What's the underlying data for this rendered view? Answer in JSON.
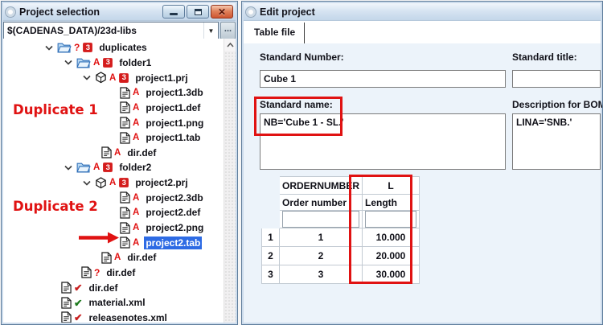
{
  "colors": {
    "frame-bg": "#cddcec",
    "frame-border": "#5f7d9c",
    "accent-red": "#e01212",
    "sel-blue": "#2e6be4",
    "badge-red": "#d41c1c",
    "check-red": "#c81e1e",
    "check-green": "#1e7a1e"
  },
  "left_window": {
    "title": "Project selection",
    "path_value": "$(CADENAS_DATA)/23d-libs",
    "browse_label": "...",
    "tree": [
      {
        "label": "duplicates",
        "pad": 52,
        "chevron": true,
        "icon": "folder",
        "marks": [
          "question"
        ],
        "badge": "3"
      },
      {
        "label": "folder1",
        "pad": 76,
        "chevron": true,
        "icon": "folder",
        "marks": [
          "letterA"
        ],
        "badge": "3"
      },
      {
        "label": "project1.prj",
        "pad": 99,
        "chevron": true,
        "icon": "cube",
        "marks": [
          "letterA"
        ],
        "badge": "3"
      },
      {
        "label": "project1.3db",
        "pad": 145,
        "icon": "doc",
        "marks": [
          "letterA"
        ]
      },
      {
        "label": "project1.def",
        "pad": 145,
        "icon": "doc",
        "marks": [
          "letterA"
        ]
      },
      {
        "label": "project1.png",
        "pad": 145,
        "icon": "doc",
        "marks": [
          "letterA"
        ]
      },
      {
        "label": "project1.tab",
        "pad": 145,
        "icon": "doc",
        "marks": [
          "letterA"
        ]
      },
      {
        "label": "dir.def",
        "pad": 122,
        "icon": "doc",
        "marks": [
          "letterA"
        ]
      },
      {
        "label": "folder2",
        "pad": 76,
        "chevron": true,
        "icon": "folder",
        "marks": [
          "letterA"
        ],
        "badge": "3"
      },
      {
        "label": "project2.prj",
        "pad": 99,
        "chevron": true,
        "icon": "cube",
        "marks": [
          "letterA"
        ],
        "badge": "3"
      },
      {
        "label": "project2.3db",
        "pad": 145,
        "icon": "doc",
        "marks": [
          "letterA"
        ]
      },
      {
        "label": "project2.def",
        "pad": 145,
        "icon": "doc",
        "marks": [
          "letterA"
        ]
      },
      {
        "label": "project2.png",
        "pad": 145,
        "icon": "doc",
        "marks": [
          "letterA"
        ]
      },
      {
        "label": "project2.tab",
        "pad": 145,
        "icon": "doc",
        "marks": [
          "letterA"
        ],
        "selected": true
      },
      {
        "label": "dir.def",
        "pad": 122,
        "icon": "doc",
        "marks": [
          "letterA"
        ]
      },
      {
        "label": "dir.def",
        "pad": 97,
        "icon": "doc",
        "marks": [
          "question"
        ]
      },
      {
        "label": "dir.def",
        "pad": 72,
        "icon": "doc",
        "marks": [
          "checkRed"
        ]
      },
      {
        "label": "material.xml",
        "pad": 72,
        "icon": "doc",
        "marks": [
          "checkGreen"
        ]
      },
      {
        "label": "releasenotes.xml",
        "pad": 72,
        "icon": "doc",
        "marks": [
          "checkRed"
        ]
      },
      {
        "label": "",
        "pad": 52,
        "icon": "doc",
        "marks": [
          "checkRed"
        ]
      }
    ],
    "annotations": {
      "duplicate1": "Duplicate 1",
      "duplicate2": "Duplicate 2"
    }
  },
  "right_window": {
    "title": "Edit project",
    "tab_label": "Table file",
    "fields": {
      "standard_number_label": "Standard Number:",
      "standard_number_value": "Cube 1",
      "standard_title_label": "Standard title:",
      "standard_title_value": "",
      "standard_name_label": "Standard name:",
      "standard_name_value": "NB='Cube 1 - SL.'",
      "bom_label": "Description for BOM:",
      "bom_value": "LINA='SNB.'"
    },
    "table": {
      "col1_header": "ORDERNUMBER",
      "col2_header": "L",
      "col1_sub": "Order number",
      "col2_sub": "Length",
      "rows": [
        {
          "num": "1",
          "order": "1",
          "length": "10.000"
        },
        {
          "num": "2",
          "order": "2",
          "length": "20.000"
        },
        {
          "num": "3",
          "order": "3",
          "length": "30.000"
        }
      ]
    }
  }
}
